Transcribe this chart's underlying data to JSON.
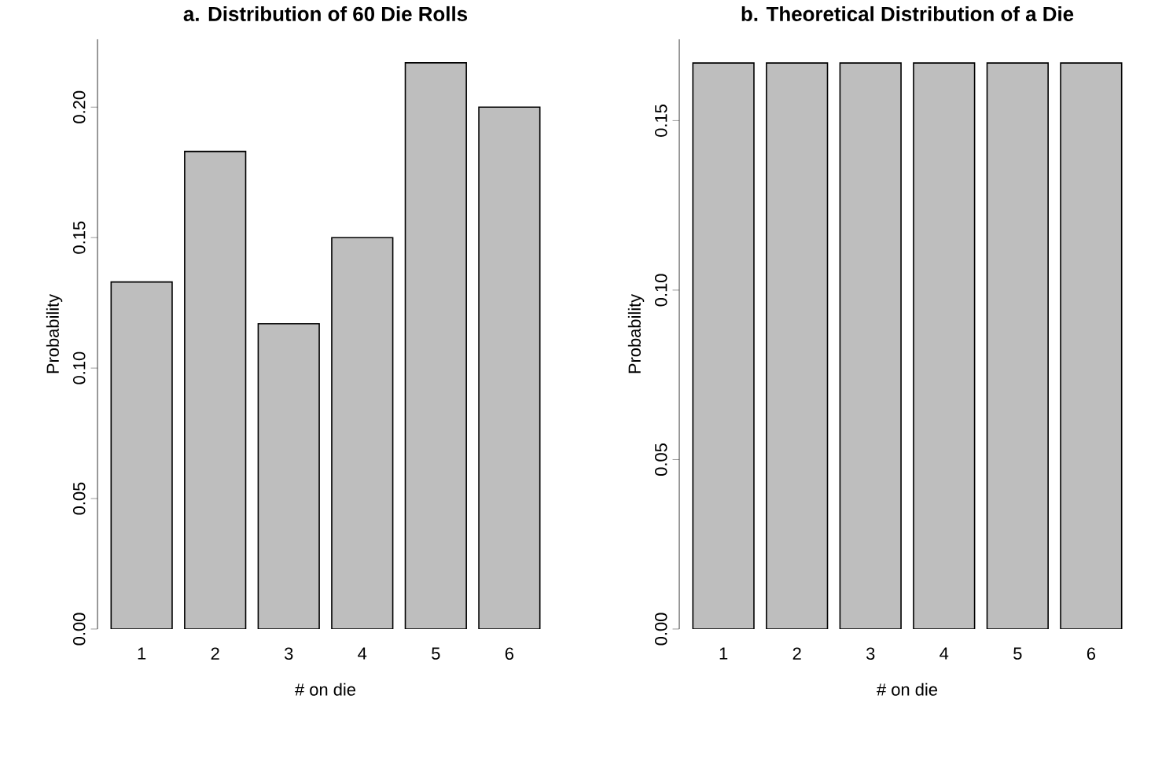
{
  "chart_data": [
    {
      "type": "bar",
      "title": "a. Distribution of 60 Die Rolls",
      "xlabel": "# on die",
      "ylabel": "Probability",
      "categories": [
        "1",
        "2",
        "3",
        "4",
        "5",
        "6"
      ],
      "values": [
        0.133,
        0.183,
        0.117,
        0.15,
        0.217,
        0.2
      ],
      "color": "#bebebe",
      "ylim": [
        0,
        0.226
      ],
      "yticks": [
        {
          "value": 0,
          "label": "0.00"
        },
        {
          "value": 0.05,
          "label": "0.05"
        },
        {
          "value": 0.1,
          "label": "0.10"
        },
        {
          "value": 0.15,
          "label": "0.15"
        },
        {
          "value": 0.2,
          "label": "0.20"
        }
      ]
    },
    {
      "type": "bar",
      "title": "b. Theoretical Distribution of a Die",
      "xlabel": "# on die",
      "ylabel": "Probability",
      "categories": [
        "1",
        "2",
        "3",
        "4",
        "5",
        "6"
      ],
      "values": [
        0.167,
        0.167,
        0.167,
        0.167,
        0.167,
        0.167
      ],
      "color": "#bebebe",
      "ylim": [
        0,
        0.174
      ],
      "yticks": [
        {
          "value": 0,
          "label": "0.00"
        },
        {
          "value": 0.05,
          "label": "0.05"
        },
        {
          "value": 0.1,
          "label": "0.10"
        },
        {
          "value": 0.15,
          "label": "0.15"
        }
      ]
    }
  ]
}
